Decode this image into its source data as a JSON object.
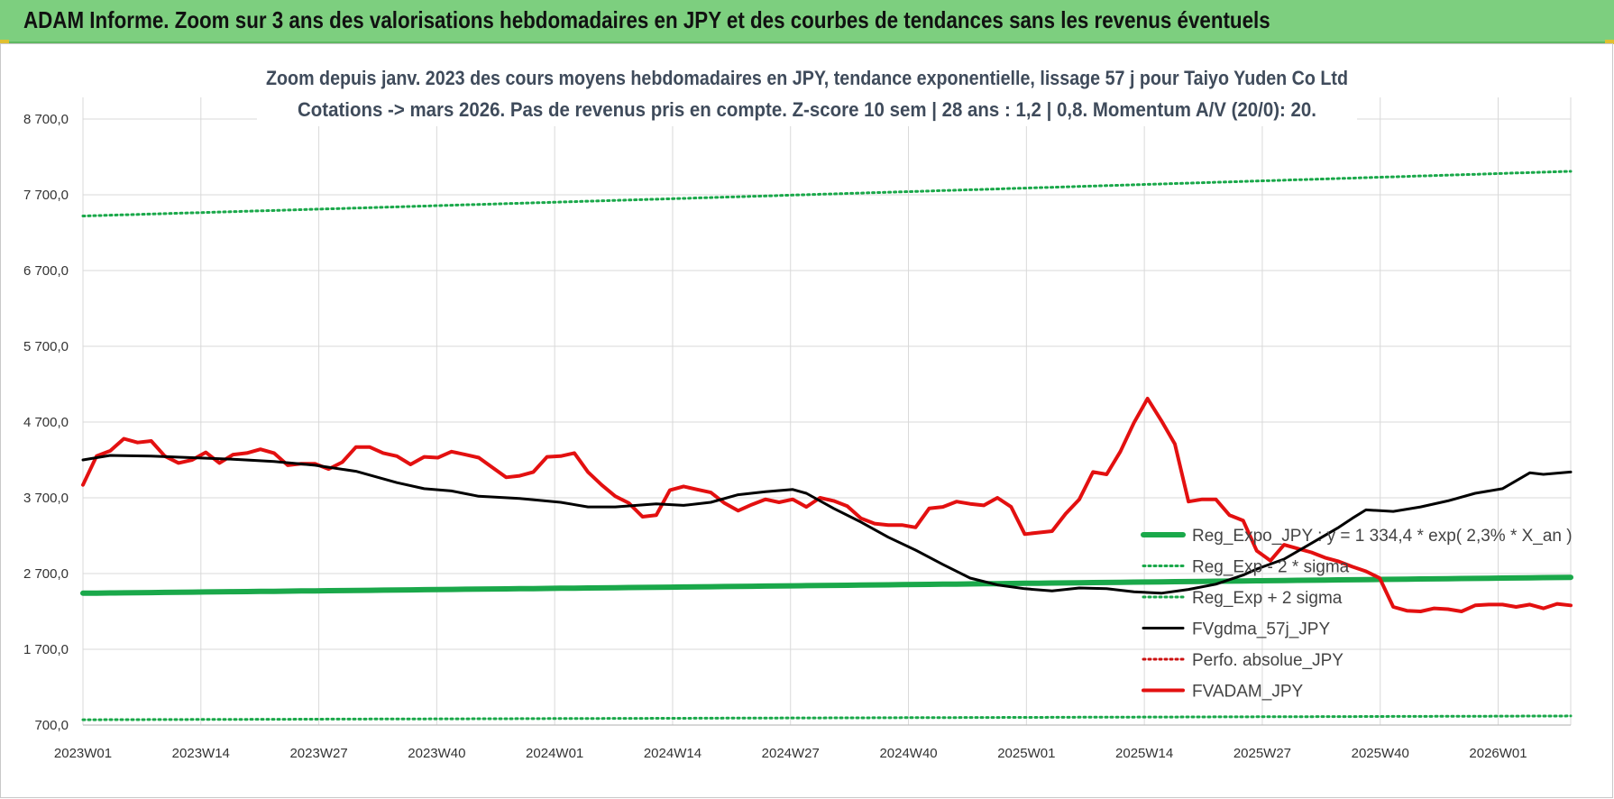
{
  "header": {
    "title": "ADAM Informe. Zoom sur 3 ans des valorisations hebdomadaires en JPY et des courbes de tendances sans les revenus éventuels"
  },
  "colors": {
    "banner": "#7dcf7f",
    "trend": "#1aa84a",
    "sigma": "#1aa84a",
    "fvgdma": "#000000",
    "perfo": "#cc1111",
    "fvadam": "#e31010",
    "grid": "#d9d9d9"
  },
  "chart_data": {
    "type": "line",
    "title": "Zoom depuis janv. 2023 des cours moyens hebdomadaires en JPY, tendance exponentielle, lissage 57 j pour Taiyo Yuden Co Ltd",
    "subtitle": "Cotations -> mars 2026. Pas de revenus pris en compte. Z-score 10 sem | 28 ans : 1,2 | 0,8. Momentum A/V (20/0): 20.",
    "xlabel": "",
    "ylabel": "",
    "ylim": [
      700,
      8700
    ],
    "y_ticks": [
      "8 700,0",
      "7 700,0",
      "6 700,0",
      "5 700,0",
      "4 700,0",
      "3 700,0",
      "2 700,0",
      "1 700,0",
      "700,0"
    ],
    "x_ticks": [
      "2023W01",
      "2023W14",
      "2023W27",
      "2023W40",
      "2024W01",
      "2024W14",
      "2024W27",
      "2024W40",
      "2025W01",
      "2025W14",
      "2025W27",
      "2025W40",
      "2026W01"
    ],
    "weeks": 165,
    "grid": true,
    "legend_position": "right",
    "series": [
      {
        "name": "Reg_Expo_JPY : y = 1 334,4 * exp( 2,3% * X_an )",
        "style": "solid-thick",
        "color": "#1aa84a",
        "start": 2440,
        "end": 2650
      },
      {
        "name": "Reg_Exp - 2 * sigma",
        "style": "dotted",
        "color": "#1aa84a",
        "start": 770,
        "end": 820
      },
      {
        "name": "Reg_Exp + 2 sigma",
        "style": "dotted",
        "color": "#1aa84a",
        "start": 7420,
        "end": 8010
      },
      {
        "name": "FVgdma_57j_JPY",
        "style": "solid",
        "color": "#000000",
        "points": [
          [
            0,
            4200
          ],
          [
            4,
            4260
          ],
          [
            10,
            4250
          ],
          [
            16,
            4230
          ],
          [
            22,
            4210
          ],
          [
            28,
            4180
          ],
          [
            34,
            4130
          ],
          [
            40,
            4050
          ],
          [
            46,
            3900
          ],
          [
            50,
            3820
          ],
          [
            54,
            3790
          ],
          [
            58,
            3720
          ],
          [
            64,
            3690
          ],
          [
            70,
            3640
          ],
          [
            74,
            3580
          ],
          [
            78,
            3580
          ],
          [
            84,
            3620
          ],
          [
            88,
            3600
          ],
          [
            92,
            3640
          ],
          [
            96,
            3740
          ],
          [
            100,
            3780
          ],
          [
            104,
            3810
          ],
          [
            106,
            3760
          ],
          [
            110,
            3560
          ],
          [
            114,
            3380
          ],
          [
            118,
            3180
          ],
          [
            122,
            3010
          ],
          [
            126,
            2820
          ],
          [
            130,
            2640
          ],
          [
            134,
            2550
          ],
          [
            138,
            2500
          ],
          [
            142,
            2470
          ],
          [
            146,
            2510
          ],
          [
            150,
            2500
          ],
          [
            154,
            2460
          ],
          [
            158,
            2440
          ],
          [
            162,
            2490
          ],
          [
            166,
            2560
          ],
          [
            170,
            2680
          ],
          [
            172,
            2760
          ],
          [
            176,
            2890
          ],
          [
            180,
            3100
          ],
          [
            184,
            3310
          ],
          [
            186,
            3430
          ],
          [
            188,
            3540
          ],
          [
            192,
            3520
          ],
          [
            196,
            3580
          ],
          [
            200,
            3660
          ],
          [
            204,
            3760
          ],
          [
            208,
            3820
          ],
          [
            212,
            4030
          ],
          [
            214,
            4010
          ],
          [
            218,
            4040
          ]
        ]
      },
      {
        "name": "Perfo. absolue_JPY",
        "style": "dotted",
        "color": "#cc1111",
        "points": []
      },
      {
        "name": "FVADAM_JPY",
        "style": "solid-thick",
        "color": "#e31010",
        "points": [
          [
            0,
            3870
          ],
          [
            2,
            4250
          ],
          [
            4,
            4320
          ],
          [
            6,
            4480
          ],
          [
            8,
            4430
          ],
          [
            10,
            4450
          ],
          [
            12,
            4250
          ],
          [
            14,
            4160
          ],
          [
            16,
            4200
          ],
          [
            18,
            4300
          ],
          [
            20,
            4160
          ],
          [
            22,
            4270
          ],
          [
            24,
            4290
          ],
          [
            26,
            4340
          ],
          [
            28,
            4290
          ],
          [
            30,
            4130
          ],
          [
            32,
            4150
          ],
          [
            34,
            4150
          ],
          [
            36,
            4080
          ],
          [
            38,
            4170
          ],
          [
            40,
            4370
          ],
          [
            42,
            4370
          ],
          [
            44,
            4290
          ],
          [
            46,
            4250
          ],
          [
            48,
            4140
          ],
          [
            50,
            4240
          ],
          [
            52,
            4230
          ],
          [
            54,
            4310
          ],
          [
            56,
            4270
          ],
          [
            58,
            4230
          ],
          [
            60,
            4100
          ],
          [
            62,
            3970
          ],
          [
            64,
            3990
          ],
          [
            66,
            4040
          ],
          [
            68,
            4240
          ],
          [
            70,
            4250
          ],
          [
            72,
            4290
          ],
          [
            74,
            4040
          ],
          [
            76,
            3870
          ],
          [
            78,
            3720
          ],
          [
            80,
            3630
          ],
          [
            82,
            3450
          ],
          [
            84,
            3470
          ],
          [
            86,
            3800
          ],
          [
            88,
            3850
          ],
          [
            90,
            3810
          ],
          [
            92,
            3770
          ],
          [
            94,
            3630
          ],
          [
            96,
            3530
          ],
          [
            98,
            3610
          ],
          [
            100,
            3680
          ],
          [
            102,
            3640
          ],
          [
            104,
            3680
          ],
          [
            106,
            3580
          ],
          [
            108,
            3700
          ],
          [
            110,
            3660
          ],
          [
            112,
            3590
          ],
          [
            114,
            3430
          ],
          [
            116,
            3360
          ],
          [
            118,
            3340
          ],
          [
            120,
            3340
          ],
          [
            122,
            3310
          ],
          [
            124,
            3560
          ],
          [
            126,
            3580
          ],
          [
            128,
            3650
          ],
          [
            130,
            3620
          ],
          [
            132,
            3600
          ],
          [
            134,
            3700
          ],
          [
            136,
            3580
          ],
          [
            138,
            3220
          ],
          [
            140,
            3240
          ],
          [
            142,
            3260
          ],
          [
            144,
            3490
          ],
          [
            146,
            3680
          ],
          [
            148,
            4040
          ],
          [
            150,
            4010
          ],
          [
            152,
            4310
          ],
          [
            154,
            4690
          ],
          [
            156,
            5010
          ],
          [
            158,
            4720
          ],
          [
            160,
            4410
          ],
          [
            162,
            3650
          ],
          [
            164,
            3680
          ],
          [
            166,
            3680
          ],
          [
            168,
            3470
          ],
          [
            170,
            3400
          ],
          [
            172,
            3000
          ],
          [
            174,
            2870
          ],
          [
            176,
            3080
          ],
          [
            178,
            3030
          ],
          [
            180,
            2980
          ],
          [
            182,
            2910
          ],
          [
            184,
            2860
          ],
          [
            186,
            2790
          ],
          [
            188,
            2730
          ],
          [
            190,
            2640
          ],
          [
            192,
            2260
          ],
          [
            194,
            2210
          ],
          [
            196,
            2200
          ],
          [
            198,
            2240
          ],
          [
            200,
            2230
          ],
          [
            202,
            2200
          ],
          [
            204,
            2280
          ],
          [
            206,
            2290
          ],
          [
            208,
            2290
          ],
          [
            210,
            2260
          ],
          [
            212,
            2290
          ],
          [
            214,
            2240
          ],
          [
            216,
            2300
          ],
          [
            218,
            2280
          ]
        ]
      }
    ],
    "annotations": []
  }
}
